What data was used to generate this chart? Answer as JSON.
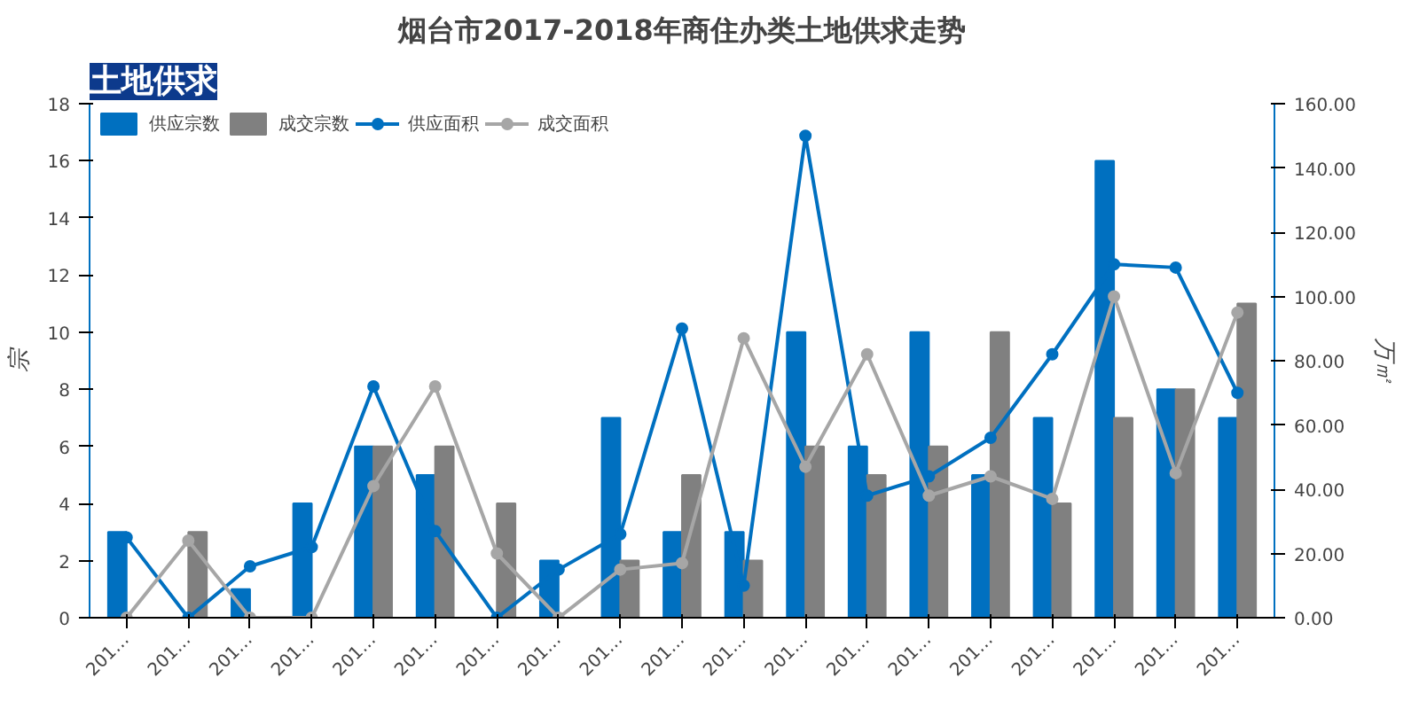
{
  "chart_data": {
    "type": "bar",
    "title": "烟台市2017-2018年商住办类土地供求走势",
    "annotations": [
      "土地供求"
    ],
    "ylabel": "宗",
    "y2label": "万㎡",
    "categories": [
      "201…",
      "201…",
      "201…",
      "201…",
      "201…",
      "201…",
      "201…",
      "201…",
      "201…",
      "201…",
      "201…",
      "201…",
      "201…",
      "201…",
      "201…",
      "201…",
      "201…",
      "201…",
      "201…"
    ],
    "series": [
      {
        "name": "供应宗数",
        "color": "#0070c0",
        "values": [
          3,
          0,
          1,
          4,
          6,
          5,
          0,
          2,
          7,
          3,
          3,
          10,
          6,
          10,
          5,
          7,
          16,
          8,
          7
        ]
      },
      {
        "name": "成交宗数",
        "color": "#808080",
        "values": [
          0,
          3,
          0,
          0,
          6,
          6,
          4,
          0,
          2,
          5,
          2,
          6,
          5,
          6,
          10,
          4,
          7,
          8,
          11
        ]
      },
      {
        "name": "供应面积",
        "type": "line",
        "axis": "y2",
        "color": "#0070c0",
        "values": [
          25,
          0,
          16,
          22,
          72,
          27,
          0,
          15,
          26,
          90,
          10,
          150,
          38,
          44,
          56,
          82,
          110,
          109,
          70
        ]
      },
      {
        "name": "成交面积",
        "type": "line",
        "axis": "y2",
        "color": "#a6a6a6",
        "values": [
          0,
          24,
          0,
          0,
          41,
          72,
          20,
          0,
          15,
          17,
          87,
          47,
          82,
          38,
          44,
          37,
          100,
          45,
          95
        ]
      }
    ],
    "ylim": [
      0,
      18
    ],
    "yticks": [
      0,
      2,
      4,
      6,
      8,
      10,
      12,
      14,
      16,
      18
    ],
    "y2lim": [
      0,
      160
    ],
    "y2ticks": [
      {
        "value": 0,
        "label": "0.00"
      },
      {
        "value": 20,
        "label": "20.00"
      },
      {
        "value": 40,
        "label": "40.00"
      },
      {
        "value": 60,
        "label": "60.00"
      },
      {
        "value": 80,
        "label": "80.00"
      },
      {
        "value": 100,
        "label": "100.00"
      },
      {
        "value": 120,
        "label": "120.00"
      },
      {
        "value": 140,
        "label": "140.00"
      },
      {
        "value": 160,
        "label": "160.00"
      }
    ],
    "legend": "top left",
    "marker": "circle",
    "grid": false
  }
}
